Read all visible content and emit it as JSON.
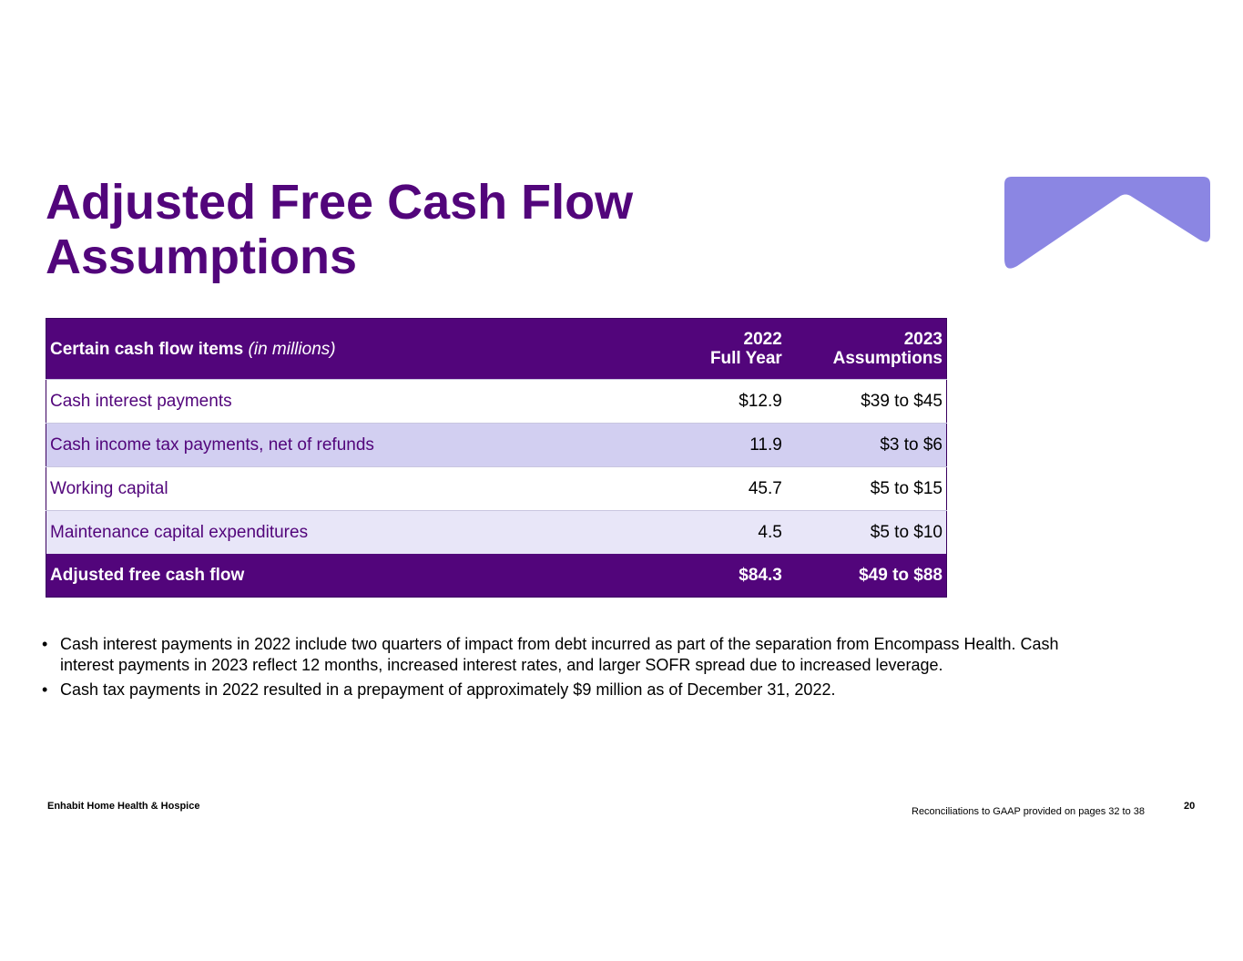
{
  "title": {
    "line1": "Adjusted Free Cash Flow",
    "line2": "Assumptions"
  },
  "logo": {
    "icon": "chevron-up-badge-icon",
    "color": "#8b86e3"
  },
  "table": {
    "header": {
      "label": "Certain cash flow items",
      "unit": "(in millions)",
      "col2_line1": "2022",
      "col2_line2": "Full Year",
      "col3_line1": "2023",
      "col3_line2": "Assumptions"
    },
    "rows": [
      {
        "label": "Cash interest payments",
        "y2022": "$12.9",
        "y2023": "$39 to $45"
      },
      {
        "label": "Cash income tax payments, net of refunds",
        "y2022": "11.9",
        "y2023": "$3 to $6"
      },
      {
        "label": "Working capital",
        "y2022": "45.7",
        "y2023": "$5 to $15"
      },
      {
        "label": "Maintenance capital expenditures",
        "y2022": "4.5",
        "y2023": "$5 to $10"
      }
    ],
    "total": {
      "label": "Adjusted free cash flow",
      "y2022": "$84.3",
      "y2023": "$49 to $88"
    }
  },
  "bullets": [
    "Cash interest payments in 2022 include two quarters of impact from debt incurred as part of the separation from Encompass Health. Cash interest payments in 2023 reflect 12 months, increased interest rates, and larger SOFR spread due to increased leverage.",
    "Cash tax payments in 2022 resulted in a prepayment of approximately $9 million as of December 31, 2022."
  ],
  "bullet_glyph": "•",
  "footer": {
    "company": "Enhabit Home Health & Hospice",
    "note": "Reconciliations to GAAP provided on pages 32 to 38",
    "page": "20"
  },
  "colors": {
    "primary": "#52057b",
    "row_alt": "#d2cff1",
    "row_light": "#e8e6f8"
  }
}
